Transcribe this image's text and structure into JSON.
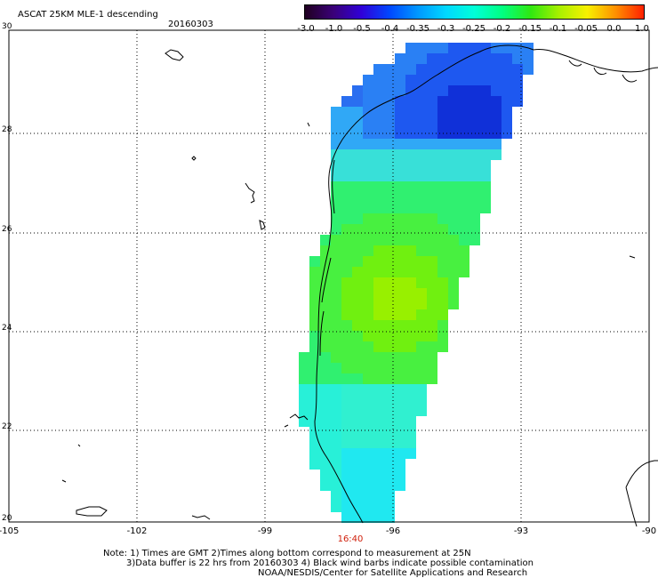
{
  "header": {
    "title": "ASCAT 25KM MLE-1 descending",
    "date": "20160303"
  },
  "colorbar": {
    "labels": [
      "-3.0",
      "-1.0",
      "-0.5",
      "-0.4",
      "-0.35",
      "-0.3",
      "-0.25",
      "-0.2",
      "-0.15",
      "-0.1",
      "-0.05",
      "0.0",
      "1.0"
    ],
    "stops": [
      "#200020",
      "#3a0078",
      "#3000d8",
      "#0048ff",
      "#0098ff",
      "#00d8ff",
      "#00ffd8",
      "#00ff80",
      "#30e810",
      "#a8f000",
      "#f8f000",
      "#ff9000",
      "#ff2000"
    ]
  },
  "map": {
    "lat_labels": [
      "30",
      "28",
      "26",
      "24",
      "22",
      "20"
    ],
    "lon_labels": [
      "-105",
      "-102",
      "-99",
      "-96",
      "-93",
      "-90"
    ],
    "time_label": "16:40",
    "time_color": "#d0200c",
    "palette": {
      "land_outline": "#000000",
      "grid": "#000000"
    }
  },
  "notes": {
    "line1": "Note: 1) Times are GMT 2)Times along bottom correspond to measurement at 25N",
    "line2": "3)Data buffer is 22 hrs from 20160303 4) Black wind barbs indicate possible contamination",
    "line3": "NOAA/NESDIS/Center for Satellite Applications and Research"
  }
}
